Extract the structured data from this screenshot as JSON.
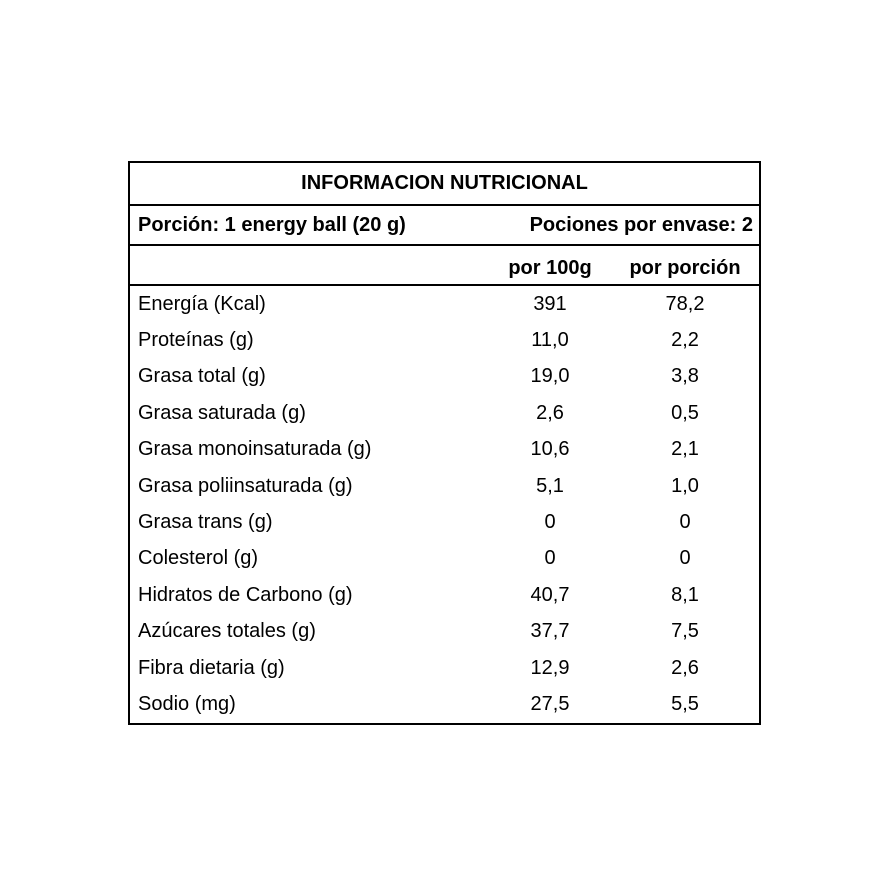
{
  "table": {
    "title": "INFORMACION NUTRICIONAL",
    "portion": "Porción: 1 energy ball (20 g)",
    "servings": "Pociones por envase: 2",
    "columns": [
      "por 100g",
      "por porción"
    ],
    "rows": [
      [
        "Energía (Kcal)",
        "391",
        "78,2"
      ],
      [
        "Proteínas (g)",
        "11,0",
        "2,2"
      ],
      [
        "Grasa total (g)",
        "19,0",
        "3,8"
      ],
      [
        "Grasa saturada (g)",
        "2,6",
        "0,5"
      ],
      [
        "Grasa monoinsaturada (g)",
        "10,6",
        "2,1"
      ],
      [
        "Grasa poliinsaturada (g)",
        "5,1",
        "1,0"
      ],
      [
        "Grasa trans (g)",
        "0",
        "0"
      ],
      [
        "Colesterol (g)",
        "0",
        "0"
      ],
      [
        "Hidratos de Carbono (g)",
        "40,7",
        "8,1"
      ],
      [
        "Azúcares totales (g)",
        "37,7",
        "7,5"
      ],
      [
        "Fibra dietaria (g)",
        "12,9",
        "2,6"
      ],
      [
        "Sodio (mg)",
        "27,5",
        "5,5"
      ]
    ]
  }
}
